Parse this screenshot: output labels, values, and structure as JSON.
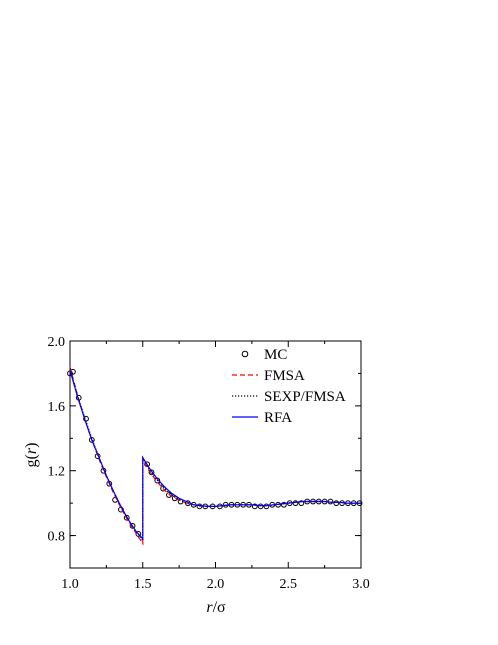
{
  "chart_data": {
    "type": "line",
    "xlabel_italic": "r",
    "xlabel_rest": "/σ",
    "ylabel_prefix": "g(",
    "ylabel_italic": "r",
    "ylabel_suffix": ")",
    "xlim": [
      1.0,
      3.0
    ],
    "ylim": [
      0.6,
      2.0
    ],
    "x_ticks": [
      1.0,
      1.5,
      2.0,
      2.5,
      3.0
    ],
    "x_tick_labels": [
      "1.0",
      "1.5",
      "2.0",
      "2.5",
      "3.0"
    ],
    "y_ticks": [
      0.8,
      1.2,
      1.6,
      2.0
    ],
    "y_tick_labels": [
      "0.8",
      "1.2",
      "1.6",
      "2.0"
    ],
    "grid": false,
    "legend_position": "top-right",
    "series": [
      {
        "name": "MC",
        "style": "circles",
        "color": "#000000",
        "points": [
          [
            1.0,
            1.8
          ],
          [
            1.02,
            1.81
          ],
          [
            1.06,
            1.65
          ],
          [
            1.11,
            1.52
          ],
          [
            1.15,
            1.39
          ],
          [
            1.19,
            1.29
          ],
          [
            1.23,
            1.2
          ],
          [
            1.27,
            1.12
          ],
          [
            1.31,
            1.02
          ],
          [
            1.35,
            0.96
          ],
          [
            1.39,
            0.91
          ],
          [
            1.43,
            0.86
          ],
          [
            1.47,
            0.81
          ],
          [
            1.53,
            1.24
          ],
          [
            1.56,
            1.19
          ],
          [
            1.6,
            1.14
          ],
          [
            1.64,
            1.09
          ],
          [
            1.68,
            1.05
          ],
          [
            1.72,
            1.03
          ],
          [
            1.76,
            1.01
          ],
          [
            1.81,
            1.0
          ],
          [
            1.85,
            0.99
          ],
          [
            1.89,
            0.98
          ],
          [
            1.93,
            0.98
          ],
          [
            1.98,
            0.98
          ],
          [
            2.03,
            0.98
          ],
          [
            2.07,
            0.99
          ],
          [
            2.11,
            0.99
          ],
          [
            2.15,
            0.99
          ],
          [
            2.19,
            0.99
          ],
          [
            2.23,
            0.99
          ],
          [
            2.27,
            0.98
          ],
          [
            2.31,
            0.98
          ],
          [
            2.35,
            0.98
          ],
          [
            2.39,
            0.99
          ],
          [
            2.43,
            0.99
          ],
          [
            2.47,
            0.99
          ],
          [
            2.51,
            1.0
          ],
          [
            2.55,
            1.0
          ],
          [
            2.59,
            1.0
          ],
          [
            2.63,
            1.01
          ],
          [
            2.67,
            1.01
          ],
          [
            2.71,
            1.01
          ],
          [
            2.75,
            1.01
          ],
          [
            2.79,
            1.01
          ],
          [
            2.83,
            1.0
          ],
          [
            2.87,
            1.0
          ],
          [
            2.91,
            1.0
          ],
          [
            2.95,
            1.0
          ],
          [
            2.99,
            1.0
          ]
        ]
      },
      {
        "name": "FMSA",
        "style": "dashed",
        "color": "#ff0000",
        "points": [
          [
            1.0,
            1.84
          ],
          [
            1.05,
            1.67
          ],
          [
            1.1,
            1.52
          ],
          [
            1.15,
            1.39
          ],
          [
            1.2,
            1.27
          ],
          [
            1.25,
            1.16
          ],
          [
            1.3,
            1.06
          ],
          [
            1.35,
            0.97
          ],
          [
            1.4,
            0.89
          ],
          [
            1.45,
            0.82
          ],
          [
            1.5,
            0.75
          ],
          [
            1.5,
            1.27
          ],
          [
            1.55,
            1.19
          ],
          [
            1.6,
            1.13
          ],
          [
            1.65,
            1.08
          ],
          [
            1.7,
            1.04
          ],
          [
            1.75,
            1.02
          ],
          [
            1.8,
            1.0
          ],
          [
            1.85,
            0.99
          ],
          [
            1.9,
            0.985
          ],
          [
            1.95,
            0.98
          ],
          [
            2.0,
            0.98
          ],
          [
            2.05,
            0.985
          ],
          [
            2.1,
            0.99
          ],
          [
            2.15,
            0.99
          ],
          [
            2.2,
            0.99
          ],
          [
            2.25,
            0.99
          ],
          [
            2.3,
            0.985
          ],
          [
            2.35,
            0.985
          ],
          [
            2.4,
            0.99
          ],
          [
            2.45,
            0.995
          ],
          [
            2.5,
            1.0
          ],
          [
            2.55,
            1.005
          ],
          [
            2.6,
            1.01
          ],
          [
            2.65,
            1.01
          ],
          [
            2.7,
            1.01
          ],
          [
            2.75,
            1.01
          ],
          [
            2.8,
            1.005
          ],
          [
            2.85,
            1.005
          ],
          [
            2.9,
            1.0
          ],
          [
            2.95,
            1.0
          ],
          [
            3.0,
            1.0
          ]
        ]
      },
      {
        "name": "SEXP/FMSA",
        "style": "dotted",
        "color": "#000000",
        "points": [
          [
            1.0,
            1.83
          ],
          [
            1.05,
            1.67
          ],
          [
            1.1,
            1.53
          ],
          [
            1.15,
            1.4
          ],
          [
            1.2,
            1.28
          ],
          [
            1.25,
            1.17
          ],
          [
            1.3,
            1.07
          ],
          [
            1.35,
            0.98
          ],
          [
            1.4,
            0.9
          ],
          [
            1.45,
            0.83
          ],
          [
            1.5,
            0.77
          ],
          [
            1.5,
            1.28
          ],
          [
            1.55,
            1.2
          ],
          [
            1.6,
            1.14
          ],
          [
            1.65,
            1.09
          ],
          [
            1.7,
            1.05
          ],
          [
            1.75,
            1.02
          ],
          [
            1.8,
            1.0
          ],
          [
            1.85,
            0.99
          ],
          [
            1.9,
            0.98
          ],
          [
            1.95,
            0.98
          ],
          [
            2.0,
            0.98
          ],
          [
            2.05,
            0.985
          ],
          [
            2.1,
            0.99
          ],
          [
            2.15,
            0.99
          ],
          [
            2.2,
            0.99
          ],
          [
            2.25,
            0.99
          ],
          [
            2.3,
            0.985
          ],
          [
            2.35,
            0.985
          ],
          [
            2.4,
            0.99
          ],
          [
            2.45,
            0.995
          ],
          [
            2.5,
            1.0
          ],
          [
            2.55,
            1.005
          ],
          [
            2.6,
            1.01
          ],
          [
            2.65,
            1.01
          ],
          [
            2.7,
            1.01
          ],
          [
            2.75,
            1.01
          ],
          [
            2.8,
            1.005
          ],
          [
            2.85,
            1.005
          ],
          [
            2.9,
            1.0
          ],
          [
            2.95,
            1.0
          ],
          [
            3.0,
            1.0
          ]
        ]
      },
      {
        "name": "RFA",
        "style": "solid",
        "color": "#0000ff",
        "points": [
          [
            1.0,
            1.82
          ],
          [
            1.05,
            1.66
          ],
          [
            1.1,
            1.52
          ],
          [
            1.15,
            1.39
          ],
          [
            1.2,
            1.28
          ],
          [
            1.25,
            1.17
          ],
          [
            1.3,
            1.07
          ],
          [
            1.35,
            0.98
          ],
          [
            1.4,
            0.9
          ],
          [
            1.45,
            0.83
          ],
          [
            1.5,
            0.78
          ],
          [
            1.5,
            1.28
          ],
          [
            1.55,
            1.21
          ],
          [
            1.6,
            1.15
          ],
          [
            1.65,
            1.1
          ],
          [
            1.7,
            1.06
          ],
          [
            1.75,
            1.03
          ],
          [
            1.8,
            1.01
          ],
          [
            1.85,
            0.99
          ],
          [
            1.9,
            0.985
          ],
          [
            1.95,
            0.98
          ],
          [
            2.0,
            0.98
          ],
          [
            2.05,
            0.985
          ],
          [
            2.1,
            0.99
          ],
          [
            2.15,
            0.99
          ],
          [
            2.2,
            0.99
          ],
          [
            2.25,
            0.99
          ],
          [
            2.3,
            0.985
          ],
          [
            2.35,
            0.985
          ],
          [
            2.4,
            0.99
          ],
          [
            2.45,
            0.995
          ],
          [
            2.5,
            1.0
          ],
          [
            2.55,
            1.005
          ],
          [
            2.6,
            1.01
          ],
          [
            2.65,
            1.01
          ],
          [
            2.7,
            1.01
          ],
          [
            2.75,
            1.01
          ],
          [
            2.8,
            1.005
          ],
          [
            2.85,
            1.005
          ],
          [
            2.9,
            1.0
          ],
          [
            2.95,
            1.0
          ],
          [
            3.0,
            1.0
          ]
        ]
      }
    ]
  }
}
